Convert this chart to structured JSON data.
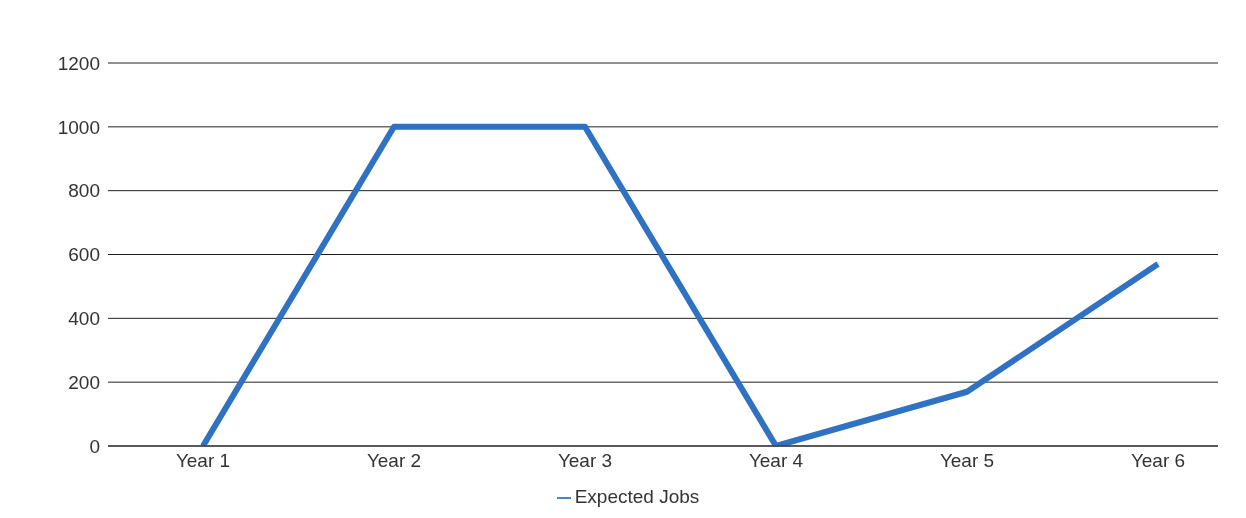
{
  "chart_data": {
    "type": "line",
    "categories": [
      "Year 1",
      "Year 2",
      "Year 3",
      "Year 4",
      "Year 5",
      "Year 6"
    ],
    "series": [
      {
        "name": "Expected Jobs",
        "color": "#2f72c4",
        "values": [
          0,
          1000,
          1000,
          0,
          170,
          570
        ]
      }
    ],
    "ylim": [
      0,
      1200
    ],
    "yticks": [
      0,
      200,
      400,
      600,
      800,
      1000,
      1200
    ],
    "grid": "y",
    "legend": "bottom",
    "marker": "none",
    "line_style": "solid"
  }
}
